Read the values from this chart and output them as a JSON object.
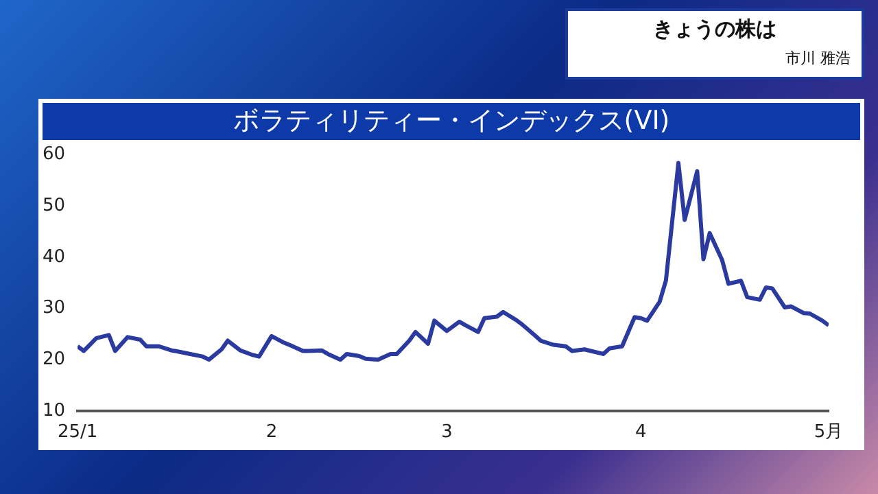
{
  "chart_data": {
    "type": "line",
    "title": "ボラティリティー・インデックス(VI)",
    "subtitle": "きょうの株は",
    "annotations": [
      "市川 雅浩"
    ],
    "x": [
      "--01-01",
      "--01-02",
      "--01-04",
      "--01-06",
      "--01-07",
      "--01-09",
      "--01-11",
      "--01-12",
      "--01-14",
      "--01-16",
      "--01-17",
      "--01-19",
      "--01-21",
      "--01-22",
      "--01-24",
      "--01-25",
      "--01-27",
      "--01-29",
      "--01-30",
      "--02-01",
      "--02-03",
      "--02-04",
      "--02-06",
      "--02-07",
      "--02-09",
      "--02-10",
      "--02-12",
      "--02-13",
      "--02-15",
      "--02-16",
      "--02-18",
      "--02-20",
      "--02-21",
      "--02-23",
      "--02-24",
      "--02-26",
      "--02-27",
      "--03-01",
      "--03-03",
      "--03-04",
      "--03-06",
      "--03-07",
      "--03-09",
      "--03-10",
      "--03-12",
      "--03-13",
      "--03-15",
      "--03-16",
      "--03-18",
      "--03-20",
      "--03-21",
      "--03-23",
      "--03-24",
      "--03-26",
      "--03-27",
      "--03-29",
      "--03-31",
      "--04-01",
      "--04-02",
      "--04-04",
      "--04-05",
      "--04-07",
      "--04-08",
      "--04-10",
      "--04-11",
      "--04-12",
      "--04-14",
      "--04-15",
      "--04-17",
      "--04-18",
      "--04-20",
      "--04-21",
      "--04-22",
      "--04-24",
      "--04-25",
      "--04-27",
      "--04-28",
      "--04-30",
      "--05-01"
    ],
    "series": [
      {
        "color": "#2b3a9e",
        "values": [
          22.6,
          21.7,
          24.2,
          24.8,
          21.7,
          24.4,
          23.9,
          22.6,
          22.6,
          21.8,
          21.6,
          21.1,
          20.6,
          20.0,
          22.0,
          23.7,
          21.8,
          20.9,
          20.6,
          24.6,
          23.3,
          22.8,
          21.7,
          21.7,
          21.8,
          21.1,
          20.0,
          21.1,
          20.7,
          20.2,
          20.0,
          21.1,
          21.1,
          23.7,
          25.4,
          23.1,
          27.6,
          25.6,
          27.4,
          26.7,
          25.4,
          28.1,
          28.4,
          29.3,
          27.8,
          26.9,
          24.8,
          23.7,
          22.9,
          22.6,
          21.7,
          22.0,
          21.7,
          21.1,
          22.2,
          22.6,
          28.3,
          28.1,
          27.6,
          31.3,
          35.4,
          58.4,
          47.3,
          56.8,
          39.6,
          44.7,
          39.4,
          34.8,
          35.4,
          32.2,
          31.7,
          34.1,
          33.9,
          30.2,
          30.4,
          29.1,
          29.0,
          27.6,
          26.7
        ]
      }
    ],
    "xlim": [
      "--01-01",
      "--05-01"
    ],
    "xticks": [
      {
        "value": "--01-01",
        "label": "25/1"
      },
      {
        "value": "--02-01",
        "label": "2"
      },
      {
        "value": "--03-01",
        "label": "3"
      },
      {
        "value": "--04-01",
        "label": "4"
      },
      {
        "value": "--05-01",
        "label": "5月"
      }
    ],
    "ylim": [
      10,
      60
    ],
    "yticks": [
      10,
      20,
      30,
      40,
      50,
      60
    ],
    "grid": false,
    "legend": false,
    "marker": "none",
    "line_style": "solid"
  }
}
